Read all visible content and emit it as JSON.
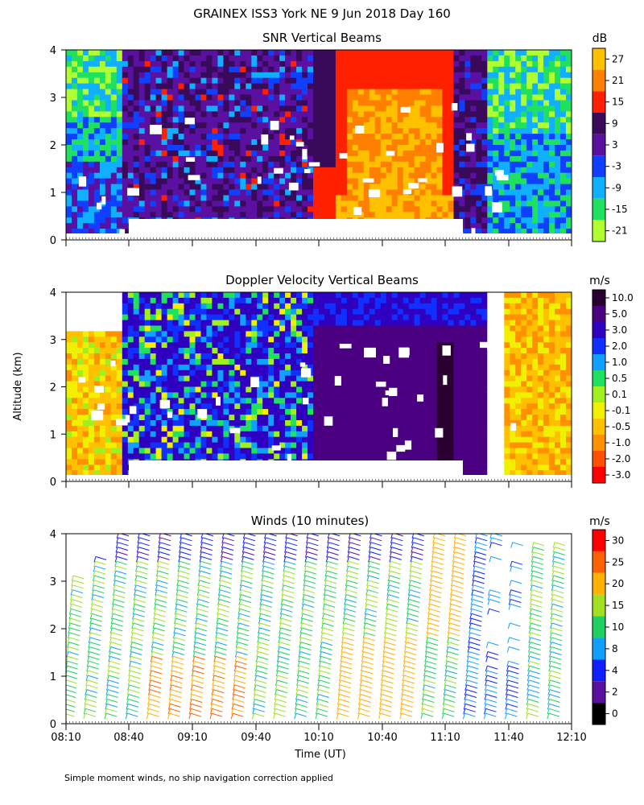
{
  "page": {
    "title": "GRAINEX ISS3 York NE   9 Jun 2018 Day 160",
    "ylabel": "Altitude (km)",
    "xlabel": "Time (UT)",
    "footnote": "Simple moment winds, no ship navigation correction applied"
  },
  "chart_data": [
    {
      "type": "heatmap",
      "title": "SNR Vertical Beams",
      "units": "dB",
      "x_ticks": [
        "08:10",
        "08:40",
        "09:10",
        "09:40",
        "10:10",
        "10:40",
        "11:10",
        "11:40",
        "12:10"
      ],
      "y_ticks": [
        0,
        1,
        2,
        3,
        4
      ],
      "ylim": [
        0,
        4
      ],
      "colorbar_levels": [
        "27",
        "21",
        "15",
        "9",
        "3",
        "-3",
        "-9",
        "-15",
        "-21"
      ],
      "colorbar_colors": [
        "#ffc000",
        "#ff8000",
        "#ff2000",
        "#3a0a5a",
        "#5a10a0",
        "#1040ff",
        "#10b0ff",
        "#20e060",
        "#b0ff30"
      ]
    },
    {
      "type": "heatmap",
      "title": "Doppler Velocity Vertical Beams",
      "units": "m/s",
      "x_ticks": [
        "08:10",
        "08:40",
        "09:10",
        "09:40",
        "10:10",
        "10:40",
        "11:10",
        "11:40",
        "12:10"
      ],
      "y_ticks": [
        0,
        1,
        2,
        3,
        4
      ],
      "ylim": [
        0,
        4
      ],
      "colorbar_levels": [
        "10.0",
        "5.0",
        "3.0",
        "2.0",
        "1.0",
        "0.5",
        "0.1",
        "-0.1",
        "-0.5",
        "-1.0",
        "-2.0",
        "-3.0"
      ],
      "colorbar_colors": [
        "#2a0030",
        "#4a0080",
        "#3000c0",
        "#1030ff",
        "#10a0ff",
        "#20e060",
        "#a0f020",
        "#f0f000",
        "#ffc000",
        "#ff9000",
        "#ff5000",
        "#ff0000"
      ]
    },
    {
      "type": "wind-barb",
      "title": "Winds (10 minutes)",
      "units": "m/s",
      "x_ticks": [
        "08:10",
        "08:40",
        "09:10",
        "09:40",
        "10:10",
        "10:40",
        "11:10",
        "11:40",
        "12:10"
      ],
      "y_ticks": [
        0,
        1,
        2,
        3,
        4
      ],
      "ylim": [
        0,
        4
      ],
      "colorbar_levels": [
        "30",
        "25",
        "20",
        "15",
        "10",
        "8",
        "4",
        "2",
        "0"
      ],
      "colorbar_colors": [
        "#ff0000",
        "#ff6000",
        "#ffb000",
        "#a0e020",
        "#20d060",
        "#10a0ff",
        "#1020ff",
        "#5a10a0",
        "#000000"
      ]
    }
  ]
}
